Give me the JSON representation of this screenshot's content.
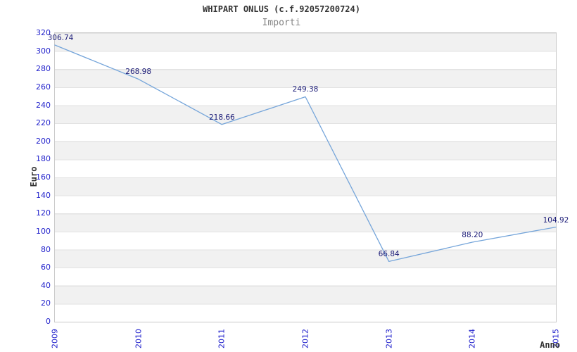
{
  "header": {
    "title": "WHIPART ONLUS (c.f.92057200724)",
    "subtitle": "Importi"
  },
  "chart_data": {
    "type": "line",
    "title": "WHIPART ONLUS (c.f.92057200724)",
    "subtitle": "Importi",
    "xlabel": "Anno",
    "ylabel": "Euro",
    "categories": [
      "2009",
      "2010",
      "2011",
      "2012",
      "2013",
      "2014",
      "2015"
    ],
    "series": [
      {
        "name": "Importi",
        "values": [
          306.74,
          268.98,
          218.66,
          249.38,
          66.84,
          88.2,
          104.92
        ],
        "point_labels": [
          "306.74",
          "268.98",
          "218.66",
          "249.38",
          "66.84",
          "88.20",
          "104.92"
        ]
      }
    ],
    "ylim": [
      0,
      320
    ],
    "y_ticks": [
      0,
      20,
      40,
      60,
      80,
      100,
      120,
      140,
      160,
      180,
      200,
      220,
      240,
      260,
      280,
      300,
      320
    ],
    "grid": "horizontal-bands-alternating",
    "legend": "none"
  },
  "colors": {
    "line": "#75a5da",
    "axis_tick_label": "#2222cc",
    "point_label": "#1c1c78",
    "axis_title": "#333333",
    "title": "#333333",
    "subtitle": "#848484",
    "band": "#f1f1f1",
    "gridline": "#e2e2e2",
    "plot_border": "#c9c9c9",
    "background": "#ffffff"
  }
}
